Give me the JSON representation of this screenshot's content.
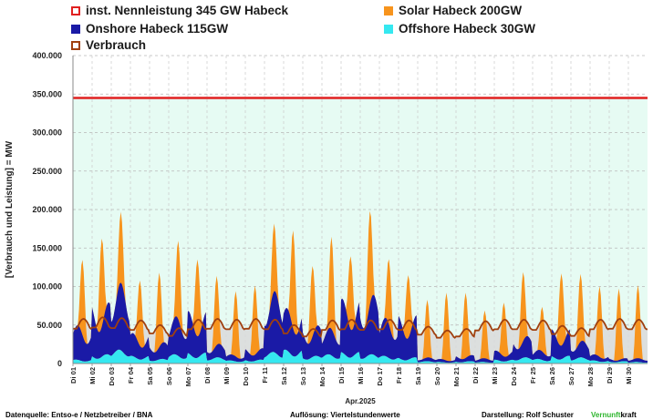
{
  "legend": [
    {
      "label": "inst. Nennleistung 345 GW Habeck",
      "color": "#e02020",
      "style": "outline"
    },
    {
      "label": "Solar Habeck 200GW",
      "color": "#f7941d",
      "style": "filled"
    },
    {
      "label": "Onshore Habeck 115GW",
      "color": "#1a1aa6",
      "style": "filled"
    },
    {
      "label": "Offshore Habeck 30GW",
      "color": "#35e8f0",
      "style": "filled"
    },
    {
      "label": "Verbrauch",
      "color": "#a0400f",
      "style": "outline"
    }
  ],
  "footer": {
    "source": "Datenquelle: Entso-e  / Netzbetreiber / BNA",
    "resolution": "Auflösung: Viertelstundenwerte",
    "author": "Darstellung:  Rolf Schuster",
    "brand_green": "Vernunft",
    "brand_rest": "kraft"
  },
  "chart_data": {
    "type": "area",
    "ylabel": "[Verbrauch und Leistung] = MW",
    "xlabel": "Apr.2025",
    "ylim": [
      0,
      400000
    ],
    "y_ticks": [
      "0",
      "50.000",
      "100.000",
      "150.000",
      "200.000",
      "250.000",
      "300.000",
      "350.000",
      "400.000"
    ],
    "y_tick_values": [
      0,
      50000,
      100000,
      150000,
      200000,
      250000,
      300000,
      350000,
      400000
    ],
    "grid": true,
    "legend_position": "top",
    "categories": [
      "Di 01",
      "Mi 02",
      "Do 03",
      "Fr 04",
      "Sa 05",
      "So 06",
      "Mo 07",
      "Di 08",
      "Mi 09",
      "Do 10",
      "Fr 11",
      "Sa 12",
      "So 13",
      "Mo 14",
      "Di 15",
      "Mi 16",
      "Do 17",
      "Fr 18",
      "Sa 19",
      "So 20",
      "Mo 21",
      "Di 22",
      "Mi 23",
      "Do 24",
      "Fr 25",
      "Sa 26",
      "So 27",
      "Mo 28",
      "Di 29",
      "Mi 30"
    ],
    "installed_capacity": 345000,
    "series": [
      {
        "name": "Solar Habeck 200GW",
        "color": "#f7941d",
        "values": [
          98000,
          115000,
          92000,
          85000,
          97000,
          102000,
          100000,
          90000,
          85000,
          90000,
          88000,
          128000,
          92000,
          120000,
          95000,
          122000,
          85000,
          82000,
          75000,
          88000,
          85000,
          62000,
          70000,
          90000,
          58000,
          94000,
          88000,
          92000,
          93000,
          95000
        ]
      },
      {
        "name": "Onshore Habeck 115GW",
        "color": "#1a1aa6",
        "values": [
          45000,
          68000,
          88000,
          30000,
          22000,
          50000,
          55000,
          18000,
          8000,
          15000,
          80000,
          55000,
          40000,
          35000,
          70000,
          78000,
          50000,
          55000,
          5000,
          4000,
          8000,
          5000,
          12000,
          28000,
          12000,
          35000,
          22000,
          8000,
          4000,
          5000
        ]
      },
      {
        "name": "Offshore Habeck 30GW",
        "color": "#35e8f0",
        "values": [
          5000,
          12000,
          18000,
          10000,
          6000,
          12000,
          14000,
          8000,
          4000,
          5000,
          15000,
          18000,
          10000,
          12000,
          15000,
          12000,
          10000,
          8000,
          3000,
          2000,
          3000,
          2000,
          5000,
          8000,
          6000,
          10000,
          8000,
          4000,
          3000,
          2000
        ]
      },
      {
        "name": "Verbrauch",
        "color": "#a0400f",
        "values": [
          58000,
          60000,
          59000,
          56000,
          50000,
          46000,
          57000,
          58000,
          57000,
          58000,
          57000,
          50000,
          45000,
          56000,
          57000,
          56000,
          57000,
          56000,
          48000,
          43000,
          45000,
          55000,
          57000,
          57000,
          56000,
          49000,
          46000,
          57000,
          58000,
          57000
        ]
      }
    ]
  }
}
